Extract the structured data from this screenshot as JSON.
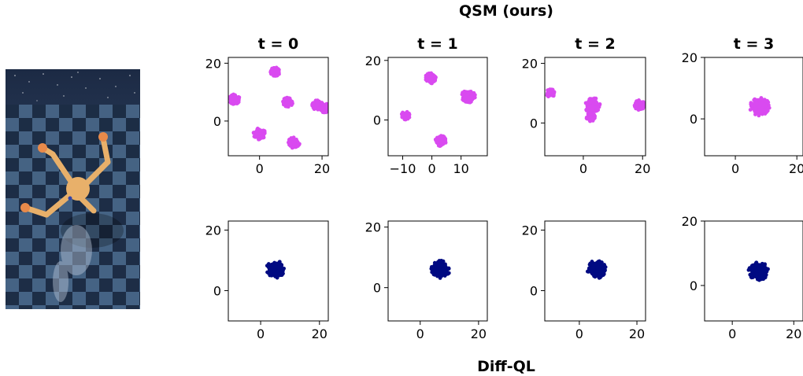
{
  "figure": {
    "top_label": "QSM (ours)",
    "bottom_label": "Diff-QL",
    "photo": {
      "icon": "humanoid-robot-render",
      "sky_color": "#2b3a55",
      "floor_light": "#5b7fa6",
      "floor_dark": "#22344f",
      "body_color": "#e8b06a"
    }
  },
  "chart_data": [
    {
      "type": "scatter",
      "row": "QSM (ours)",
      "title": "t = 0",
      "xlim": [
        -10,
        22
      ],
      "ylim": [
        -12,
        22
      ],
      "xticks": [
        0,
        20
      ],
      "yticks": [
        0,
        20
      ],
      "color": "#d94af0",
      "clusters": [
        {
          "x": 5,
          "y": 17,
          "r": 1.5
        },
        {
          "x": -8,
          "y": 7.5,
          "r": 1.7
        },
        {
          "x": 9,
          "y": 6.5,
          "r": 1.6
        },
        {
          "x": 18.5,
          "y": 5.5,
          "r": 1.7
        },
        {
          "x": 21,
          "y": 4.5,
          "r": 1.6
        },
        {
          "x": 0,
          "y": -4.5,
          "r": 2.0
        },
        {
          "x": 11,
          "y": -7.5,
          "r": 1.9
        }
      ]
    },
    {
      "type": "scatter",
      "row": "QSM (ours)",
      "title": "t = 1",
      "xlim": [
        -15,
        19
      ],
      "ylim": [
        -12,
        21
      ],
      "xticks": [
        -10,
        0,
        10
      ],
      "yticks": [
        0,
        20
      ],
      "color": "#d94af0",
      "clusters": [
        {
          "x": -0.5,
          "y": 14,
          "r": 1.9
        },
        {
          "x": 12.5,
          "y": 8,
          "r": 2.4
        },
        {
          "x": -9,
          "y": 1.5,
          "r": 1.5
        },
        {
          "x": 3,
          "y": -7,
          "r": 1.9
        }
      ]
    },
    {
      "type": "scatter",
      "row": "QSM (ours)",
      "title": "t = 2",
      "xlim": [
        -13,
        21
      ],
      "ylim": [
        -11,
        22
      ],
      "xticks": [
        0,
        20
      ],
      "yticks": [
        0,
        20
      ],
      "color": "#d94af0",
      "clusters": [
        {
          "x": -11,
          "y": 10,
          "r": 1.5
        },
        {
          "x": 3,
          "y": 6,
          "r": 2.8
        },
        {
          "x": 2.5,
          "y": 2,
          "r": 1.5
        },
        {
          "x": 19,
          "y": 6,
          "r": 1.8
        }
      ]
    },
    {
      "type": "scatter",
      "row": "QSM (ours)",
      "title": "t = 3",
      "xlim": [
        -10,
        22
      ],
      "ylim": [
        -12,
        20
      ],
      "xticks": [
        0,
        20
      ],
      "yticks": [
        0,
        20
      ],
      "color": "#d94af0",
      "clusters": [
        {
          "x": 8,
          "y": 4,
          "r": 3.3
        }
      ]
    },
    {
      "type": "scatter",
      "row": "Diff-QL",
      "xlim": [
        -11,
        23
      ],
      "ylim": [
        -10,
        23
      ],
      "xticks": [
        0,
        20
      ],
      "yticks": [
        0,
        20
      ],
      "color": "#000a82",
      "clusters": [
        {
          "x": 5,
          "y": 7,
          "r": 3.2
        }
      ]
    },
    {
      "type": "scatter",
      "row": "Diff-QL",
      "xlim": [
        -11,
        23
      ],
      "ylim": [
        -11,
        22
      ],
      "xticks": [
        0,
        20
      ],
      "yticks": [
        0,
        20
      ],
      "color": "#000a82",
      "clusters": [
        {
          "x": 7,
          "y": 6,
          "r": 3.2
        }
      ]
    },
    {
      "type": "scatter",
      "row": "Diff-QL",
      "xlim": [
        -12,
        23
      ],
      "ylim": [
        -10,
        23
      ],
      "xticks": [
        0,
        20
      ],
      "yticks": [
        0,
        20
      ],
      "color": "#000a82",
      "clusters": [
        {
          "x": 6,
          "y": 7,
          "r": 3.3
        }
      ]
    },
    {
      "type": "scatter",
      "row": "Diff-QL",
      "xlim": [
        -9,
        23
      ],
      "ylim": [
        -11,
        20
      ],
      "xticks": [
        0,
        20
      ],
      "yticks": [
        0,
        20
      ],
      "color": "#000a82",
      "clusters": [
        {
          "x": 8.5,
          "y": 4.5,
          "r": 3.2
        }
      ]
    }
  ]
}
